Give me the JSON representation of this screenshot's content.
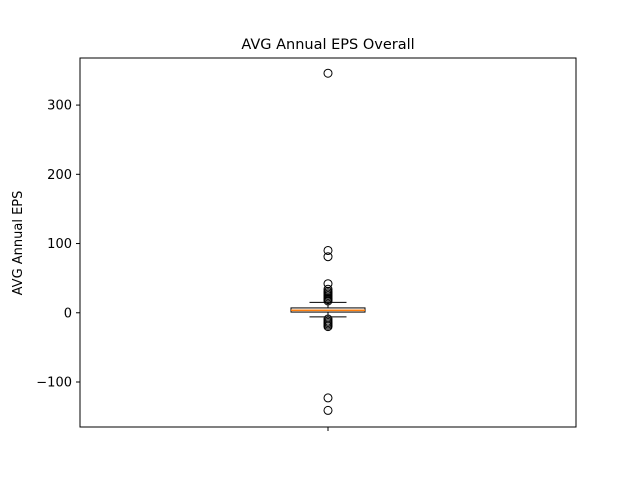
{
  "chart_data": {
    "type": "box",
    "title": "AVG Annual EPS Overall",
    "xlabel": "",
    "ylabel": "AVG Annual EPS",
    "ylim": [
      -165,
      368
    ],
    "yticks": [
      {
        "value": -100,
        "label": "−100"
      },
      {
        "value": 0,
        "label": "0"
      },
      {
        "value": 100,
        "label": "100"
      },
      {
        "value": 200,
        "label": "200"
      },
      {
        "value": 300,
        "label": "300"
      }
    ],
    "grid": false,
    "box": {
      "whisker_low": -6,
      "q1": 1,
      "median": 3.5,
      "q3": 7,
      "whisker_high": 15
    },
    "outliers": [
      346,
      90,
      81,
      42,
      34,
      31,
      29,
      27,
      25,
      23,
      21,
      19,
      17,
      -9,
      -12,
      -14,
      -16,
      -18,
      -20,
      -123,
      -141
    ],
    "colors": {
      "box_edge": "#000000",
      "median": "#ff7f0e",
      "outlier_edge": "#000000",
      "axes": "#000000"
    }
  }
}
